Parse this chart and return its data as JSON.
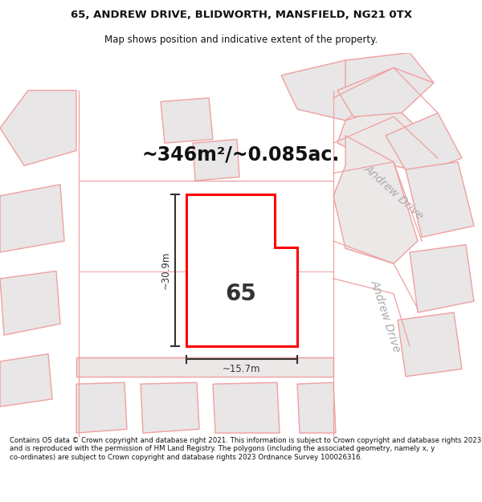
{
  "title_line1": "65, ANDREW DRIVE, BLIDWORTH, MANSFIELD, NG21 0TX",
  "title_line2": "Map shows position and indicative extent of the property.",
  "area_text": "~346m²/~0.085ac.",
  "label_65": "65",
  "dim_height": "~30.9m",
  "dim_width": "~15.7m",
  "footer_text": "Contains OS data © Crown copyright and database right 2021. This information is subject to Crown copyright and database rights 2023 and is reproduced with the permission of HM Land Registry. The polygons (including the associated geometry, namely x, y co-ordinates) are subject to Crown copyright and database rights 2023 Ordnance Survey 100026316.",
  "bg_color": "#faf5f5",
  "block_fill": "#e8e6e6",
  "line_color": "#f0a0a0",
  "road_fill": "#f0eded",
  "property_fill": "#ffffff",
  "property_outline": "#ff0000",
  "street_color": "#aaaaaa",
  "dim_color": "#333333",
  "text_color": "#222222",
  "street_label_top": "Andrew Drive",
  "street_label_right": "Andrew Drive"
}
